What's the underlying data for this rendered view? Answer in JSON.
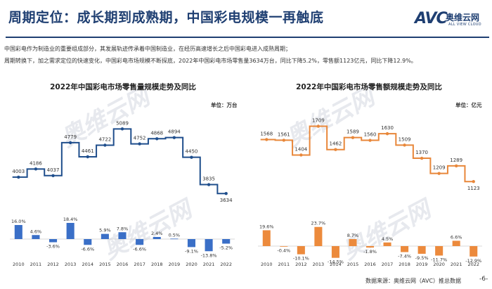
{
  "header": {
    "title": "周期定位：成长期到成熟期，中国彩电规模一再触底",
    "logo_text": "AVC",
    "logo_cn": "奥维云网",
    "logo_en": "ALL VIEW CLOUD"
  },
  "intro": {
    "line1": "中国彩电作为制造业的重要组成部分，其发展轨迹传承着中国制造业，在经历高速增长之后中国彩电进入成熟周期；",
    "line2": "周期转换下，加之需求定位的快速变化，中国彩电市场规模不断探底，2022年中国彩电市场零售量3634万台，同比下降5.2%，零售额1123亿元，同比下降12.9%。"
  },
  "watermark": "奥维云网",
  "footer": {
    "source": "数据来源：奥维云网（AVC）推总数据",
    "page": "-6-"
  },
  "colors": {
    "volume": "#1f4e8c",
    "volume_bar": "#3a6fc7",
    "value": "#e8873a",
    "value_bar": "#ec8a3c"
  },
  "chart_data": [
    {
      "type": "line",
      "title": "2022年中国彩电市场零售量规模走势及同比",
      "unit": "单位：万台",
      "style": "step",
      "x": [
        "2010",
        "2011",
        "2012",
        "2013",
        "2014",
        "2015",
        "2016",
        "2017",
        "2018",
        "2019",
        "2020",
        "2021",
        "2022"
      ],
      "values": [
        4003,
        4186,
        4037,
        4779,
        4461,
        4722,
        5089,
        4752,
        4868,
        4894,
        4450,
        3835,
        3634
      ],
      "ylim": [
        3400,
        5300
      ],
      "growth": {
        "type": "bar",
        "values": [
          16.0,
          4.6,
          -3.6,
          18.4,
          -6.6,
          5.9,
          7.8,
          -6.6,
          2.4,
          0.5,
          -9.1,
          -13.8,
          -5.2
        ],
        "labels": [
          "16.0%",
          "4.6%",
          "-3.6%",
          "18.4%",
          "-6.6%",
          "5.9%",
          "7.8%",
          "-6.6%",
          "2.4%",
          "0.5%",
          "-9.1%",
          "-13.8%",
          "-5.2%"
        ]
      }
    },
    {
      "type": "line",
      "title": "2022年中国彩电市场零售额规模走势及同比",
      "unit": "单位：亿元",
      "style": "step",
      "x": [
        "2010",
        "2011",
        "2012",
        "2013",
        "2014",
        "2015",
        "2016",
        "2017",
        "2018",
        "2019",
        "2020",
        "2021",
        "2022"
      ],
      "values": [
        1568,
        1561,
        1404,
        1709,
        1462,
        1589,
        1560,
        1630,
        1509,
        1370,
        1209,
        1289,
        1123
      ],
      "ylim": [
        1050,
        1780
      ],
      "growth": {
        "type": "bar",
        "values": [
          19.6,
          -0.4,
          -10.1,
          23.7,
          -14.5,
          8.7,
          -1.8,
          4.5,
          -7.4,
          -9.5,
          -11.7,
          6.6,
          -12.9
        ],
        "labels": [
          "19.6%",
          "-0.4%",
          "-10.1%",
          "23.7%",
          "-14.5%",
          "8.7%",
          "-1.8%",
          "4.5%",
          "-7.4%",
          "-9.5%",
          "-11.7%",
          "6.6%",
          "-12.9%"
        ]
      }
    }
  ]
}
